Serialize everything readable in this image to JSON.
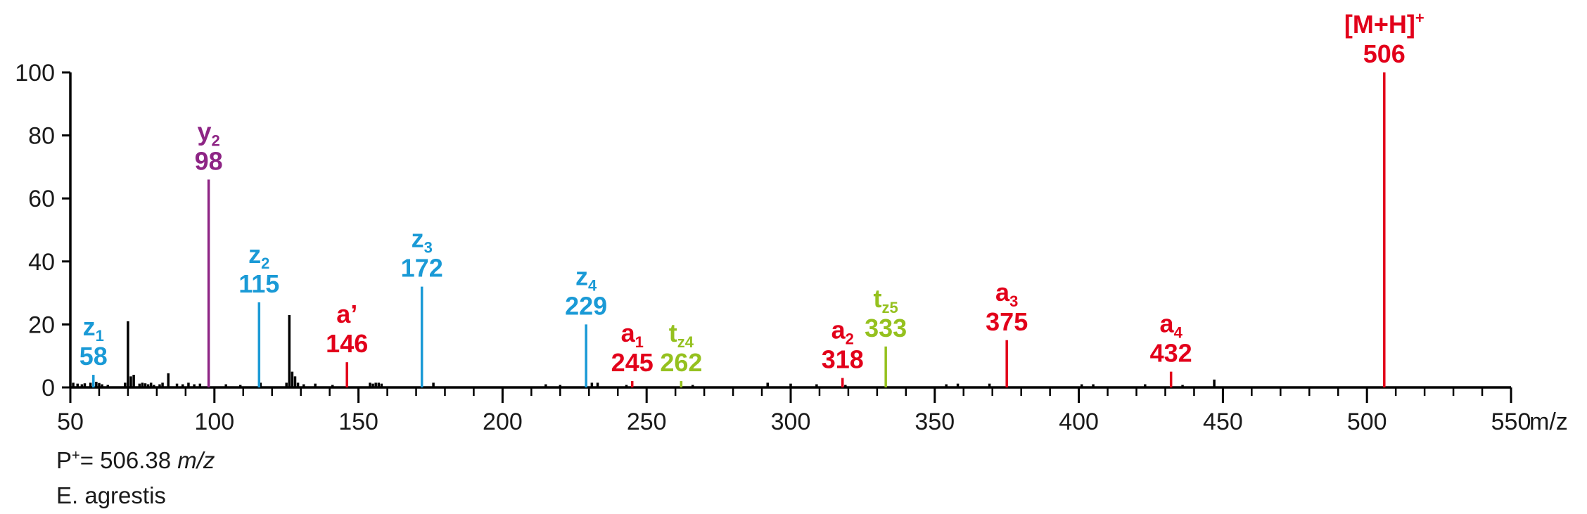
{
  "chart_data": {
    "type": "bar",
    "xlabel": "m/z",
    "xlim": [
      50,
      550
    ],
    "ylim": [
      0,
      100
    ],
    "x_ticks": [
      50,
      100,
      150,
      200,
      250,
      300,
      350,
      400,
      450,
      500,
      550
    ],
    "y_ticks": [
      0,
      20,
      40,
      60,
      80,
      100
    ],
    "annotated_peaks": [
      {
        "name": "z",
        "sub": "1",
        "mz_label": "58",
        "mz": 58,
        "intensity": 4,
        "color": "#1a9ad6"
      },
      {
        "name": "y",
        "sub": "2",
        "mz_label": "98",
        "mz": 98,
        "intensity": 66,
        "color": "#8e2585"
      },
      {
        "name": "z",
        "sub": "2",
        "mz_label": "115",
        "mz": 115.5,
        "intensity": 27,
        "color": "#1a9ad6"
      },
      {
        "name": "a’",
        "sub": "",
        "mz_label": "146",
        "mz": 146,
        "intensity": 8,
        "color": "#e2001a"
      },
      {
        "name": "z",
        "sub": "3",
        "mz_label": "172",
        "mz": 172,
        "intensity": 32,
        "color": "#1a9ad6"
      },
      {
        "name": "z",
        "sub": "4",
        "mz_label": "229",
        "mz": 229,
        "intensity": 20,
        "color": "#1a9ad6"
      },
      {
        "name": "a",
        "sub": "1",
        "mz_label": "245",
        "mz": 245,
        "intensity": 2,
        "color": "#e2001a"
      },
      {
        "name": "t",
        "sub": "z4",
        "mz_label": "262",
        "mz": 262,
        "intensity": 2,
        "color": "#95c11f"
      },
      {
        "name": "a",
        "sub": "2",
        "mz_label": "318",
        "mz": 318,
        "intensity": 3,
        "color": "#e2001a"
      },
      {
        "name": "t",
        "sub": "z5",
        "mz_label": "333",
        "mz": 333,
        "intensity": 13,
        "color": "#95c11f"
      },
      {
        "name": "a",
        "sub": "3",
        "mz_label": "375",
        "mz": 375,
        "intensity": 15,
        "color": "#e2001a"
      },
      {
        "name": "a",
        "sub": "4",
        "mz_label": "432",
        "mz": 432,
        "intensity": 5,
        "color": "#e2001a"
      },
      {
        "name": "[M+H]",
        "sup": "+",
        "mz_label": "506",
        "mz": 506,
        "intensity": 100,
        "color": "#e2001a"
      }
    ],
    "other_peaks": [
      [
        51,
        1.5
      ],
      [
        52.5,
        1.2
      ],
      [
        54,
        1.0
      ],
      [
        55,
        1.3
      ],
      [
        57,
        1.5
      ],
      [
        59,
        1.8
      ],
      [
        60,
        1.4
      ],
      [
        61,
        1.0
      ],
      [
        63,
        0.8
      ],
      [
        69,
        1.5
      ],
      [
        70,
        21
      ],
      [
        71,
        3.5
      ],
      [
        72,
        4
      ],
      [
        74,
        1.2
      ],
      [
        75,
        1.5
      ],
      [
        76,
        1.3
      ],
      [
        77,
        1.0
      ],
      [
        78,
        1.5
      ],
      [
        79,
        0.8
      ],
      [
        81,
        1.0
      ],
      [
        82,
        1.5
      ],
      [
        84,
        4.5
      ],
      [
        87,
        1.2
      ],
      [
        89,
        1.0
      ],
      [
        91,
        1.5
      ],
      [
        93,
        1.0
      ],
      [
        95,
        1.2
      ],
      [
        104,
        1.0
      ],
      [
        109,
        0.8
      ],
      [
        116,
        1.5
      ],
      [
        125,
        1.5
      ],
      [
        126,
        23
      ],
      [
        127,
        5
      ],
      [
        128,
        3.5
      ],
      [
        129,
        1.5
      ],
      [
        131,
        1.0
      ],
      [
        135,
        1.2
      ],
      [
        141,
        0.8
      ],
      [
        154,
        1.5
      ],
      [
        155,
        1.2
      ],
      [
        156,
        1.5
      ],
      [
        157,
        1.5
      ],
      [
        158,
        1.2
      ],
      [
        176,
        1.5
      ],
      [
        215,
        1.0
      ],
      [
        220,
        0.8
      ],
      [
        231,
        1.5
      ],
      [
        233,
        1.5
      ],
      [
        243,
        0.8
      ],
      [
        266,
        0.8
      ],
      [
        292,
        1.5
      ],
      [
        300,
        1.2
      ],
      [
        309,
        1.0
      ],
      [
        319,
        0.8
      ],
      [
        354,
        1.0
      ],
      [
        358,
        1.2
      ],
      [
        369,
        1.2
      ],
      [
        401,
        1.0
      ],
      [
        405,
        1.0
      ],
      [
        423,
        1.0
      ],
      [
        436,
        0.8
      ],
      [
        447,
        2.5
      ]
    ]
  },
  "footer": {
    "precursor_prefix": "P",
    "precursor_sup": "+",
    "precursor_value": "= 506.38 ",
    "precursor_unit": "m/z",
    "species": "E. agrestis"
  }
}
